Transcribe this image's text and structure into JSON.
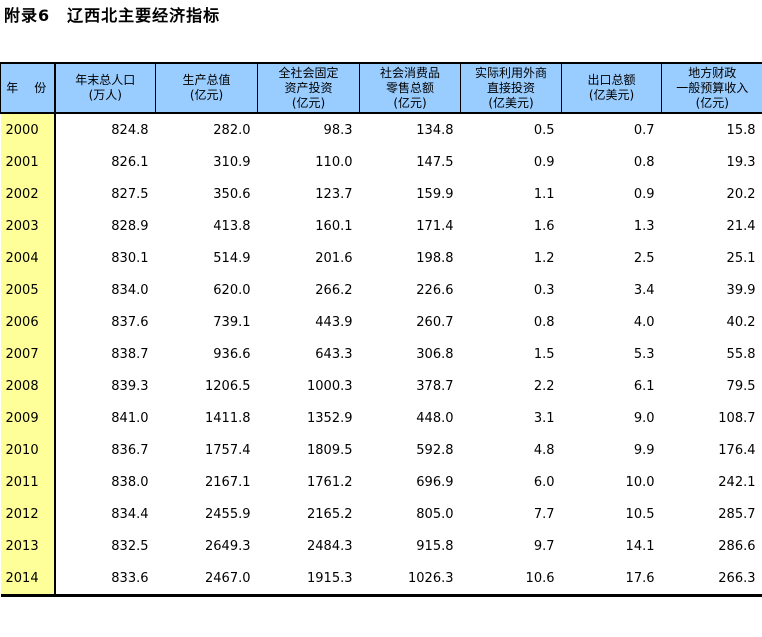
{
  "page": {
    "title": "附录6　辽西北主要经济指标"
  },
  "colors": {
    "header_bg": "#99CCFF",
    "year_column_bg": "#FFFF99",
    "border": "#000000",
    "text": "#000000"
  },
  "table": {
    "columns": [
      {
        "id": "year",
        "lines": [
          "年　份"
        ]
      },
      {
        "id": "pop",
        "lines": [
          "年末总人口",
          "(万人)"
        ]
      },
      {
        "id": "gdp",
        "lines": [
          "生产总值",
          "(亿元)"
        ]
      },
      {
        "id": "fai",
        "lines": [
          "全社会固定",
          "资产投资",
          "(亿元)"
        ]
      },
      {
        "id": "ret",
        "lines": [
          "社会消费品",
          "零售总额",
          "(亿元)"
        ]
      },
      {
        "id": "fdi",
        "lines": [
          "实际利用外商",
          "直接投资",
          "(亿美元)"
        ]
      },
      {
        "id": "exp",
        "lines": [
          "出口总额",
          "(亿美元)"
        ]
      },
      {
        "id": "fis",
        "lines": [
          "地方财政",
          "一般预算收入",
          "(亿元)"
        ]
      }
    ],
    "rows": [
      {
        "year": "2000",
        "values": [
          "824.8",
          "282.0",
          "98.3",
          "134.8",
          "0.5",
          "0.7",
          "15.8"
        ]
      },
      {
        "year": "2001",
        "values": [
          "826.1",
          "310.9",
          "110.0",
          "147.5",
          "0.9",
          "0.8",
          "19.3"
        ]
      },
      {
        "year": "2002",
        "values": [
          "827.5",
          "350.6",
          "123.7",
          "159.9",
          "1.1",
          "0.9",
          "20.2"
        ]
      },
      {
        "year": "2003",
        "values": [
          "828.9",
          "413.8",
          "160.1",
          "171.4",
          "1.6",
          "1.3",
          "21.4"
        ]
      },
      {
        "year": "2004",
        "values": [
          "830.1",
          "514.9",
          "201.6",
          "198.8",
          "1.2",
          "2.5",
          "25.1"
        ]
      },
      {
        "year": "2005",
        "values": [
          "834.0",
          "620.0",
          "266.2",
          "226.6",
          "0.3",
          "3.4",
          "39.9"
        ]
      },
      {
        "year": "2006",
        "values": [
          "837.6",
          "739.1",
          "443.9",
          "260.7",
          "0.8",
          "4.0",
          "40.2"
        ]
      },
      {
        "year": "2007",
        "values": [
          "838.7",
          "936.6",
          "643.3",
          "306.8",
          "1.5",
          "5.3",
          "55.8"
        ]
      },
      {
        "year": "2008",
        "values": [
          "839.3",
          "1206.5",
          "1000.3",
          "378.7",
          "2.2",
          "6.1",
          "79.5"
        ]
      },
      {
        "year": "2009",
        "values": [
          "841.0",
          "1411.8",
          "1352.9",
          "448.0",
          "3.1",
          "9.0",
          "108.7"
        ]
      },
      {
        "year": "2010",
        "values": [
          "836.7",
          "1757.4",
          "1809.5",
          "592.8",
          "4.8",
          "9.9",
          "176.4"
        ]
      },
      {
        "year": "2011",
        "values": [
          "838.0",
          "2167.1",
          "1761.2",
          "696.9",
          "6.0",
          "10.0",
          "242.1"
        ]
      },
      {
        "year": "2012",
        "values": [
          "834.4",
          "2455.9",
          "2165.2",
          "805.0",
          "7.7",
          "10.5",
          "285.7"
        ]
      },
      {
        "year": "2013",
        "values": [
          "832.5",
          "2649.3",
          "2484.3",
          "915.8",
          "9.7",
          "14.1",
          "286.6"
        ]
      },
      {
        "year": "2014",
        "values": [
          "833.6",
          "2467.0",
          "1915.3",
          "1026.3",
          "10.6",
          "17.6",
          "266.3"
        ]
      }
    ]
  }
}
